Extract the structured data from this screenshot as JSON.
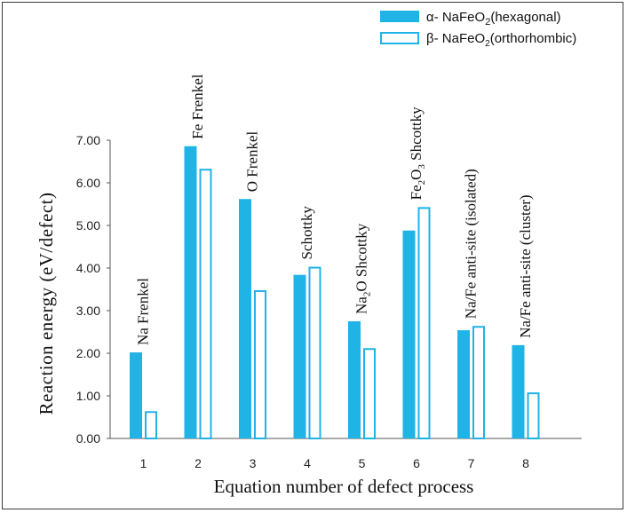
{
  "chart_data": {
    "type": "bar",
    "title": "",
    "xlabel": "Equation number of  defect process",
    "ylabel": "Reaction energy (eV/defect)",
    "ylim": [
      0,
      7
    ],
    "yticks": [
      "0.00",
      "1.00",
      "2.00",
      "3.00",
      "4.00",
      "5.00",
      "6.00",
      "7.00"
    ],
    "categories": [
      "1",
      "2",
      "3",
      "4",
      "5",
      "6",
      "7",
      "8"
    ],
    "series": [
      {
        "name": "NaFeO2(hexagonal)",
        "legend_prefix": "α- ",
        "legend_main": "NaFeO",
        "legend_sub": "2",
        "legend_tail": "(hexagonal)",
        "style": "filled",
        "color": "#1fb3e6",
        "values": [
          2.02,
          6.86,
          5.62,
          3.84,
          2.75,
          4.88,
          2.54,
          2.19
        ]
      },
      {
        "name": "NaFeO2(orthorhombic)",
        "legend_prefix": "β- ",
        "legend_main": "NaFeO",
        "legend_sub": "2",
        "legend_tail": "(orthorhombic)",
        "style": "outline",
        "color": "#1fb3e6",
        "values": [
          0.64,
          6.33,
          3.48,
          4.03,
          2.12,
          5.43,
          2.64,
          1.08
        ]
      }
    ],
    "annotations": [
      {
        "category": "1",
        "parts": [
          {
            "t": "Na Frenkel"
          }
        ]
      },
      {
        "category": "2",
        "parts": [
          {
            "t": "Fe Frenkel"
          }
        ]
      },
      {
        "category": "3",
        "parts": [
          {
            "t": "O Frenkel"
          }
        ]
      },
      {
        "category": "4",
        "parts": [
          {
            "t": "Schottky"
          }
        ]
      },
      {
        "category": "5",
        "parts": [
          {
            "t": "Na"
          },
          {
            "t": "2",
            "sub": true
          },
          {
            "t": "O Shcottky"
          }
        ]
      },
      {
        "category": "6",
        "parts": [
          {
            "t": "Fe"
          },
          {
            "t": "2",
            "sub": true
          },
          {
            "t": "O"
          },
          {
            "t": "3",
            "sub": true
          },
          {
            "t": " Shcottky"
          }
        ]
      },
      {
        "category": "7",
        "parts": [
          {
            "t": "Na/Fe anti-site (isolated)"
          }
        ]
      },
      {
        "category": "8",
        "parts": [
          {
            "t": "Na/Fe anti-site (cluster)"
          }
        ]
      }
    ]
  }
}
